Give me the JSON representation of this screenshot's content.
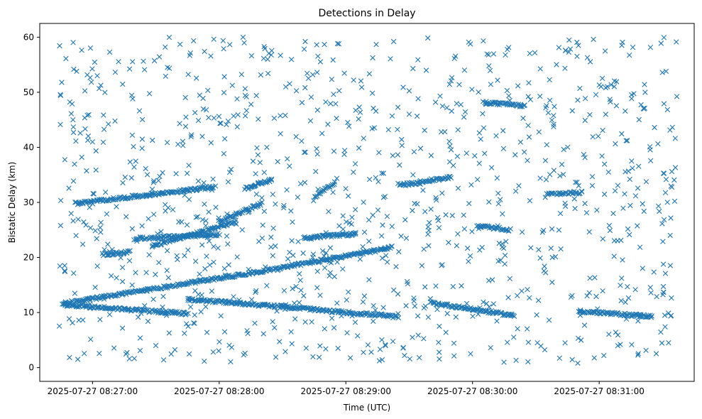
{
  "chart_data": {
    "type": "scatter",
    "title": "Detections in Delay",
    "xlabel": "Time (UTC)",
    "ylabel": "Bistatic Delay (km)",
    "marker": "x",
    "color": "#1f77b4",
    "xlim": [
      "2025-07-27 08:26:35",
      "2025-07-27 08:31:45"
    ],
    "ylim": [
      -2.5,
      62.5
    ],
    "xticks": [
      "2025-07-27 08:27:00",
      "2025-07-27 08:28:00",
      "2025-07-27 08:29:00",
      "2025-07-27 08:30:00",
      "2025-07-27 08:31:00"
    ],
    "yticks": [
      0,
      10,
      20,
      30,
      40,
      50,
      60
    ],
    "grid": false,
    "tracks": [
      {
        "x": [
          "2025-07-27 08:26:46",
          "2025-07-27 08:28:20"
        ],
        "y": [
          11.6,
          17.5
        ]
      },
      {
        "x": [
          "2025-07-27 08:28:20",
          "2025-07-27 08:29:22"
        ],
        "y": [
          17.5,
          21.8
        ]
      },
      {
        "x": [
          "2025-07-27 08:26:46",
          "2025-07-27 08:27:45"
        ],
        "y": [
          11.4,
          9.8
        ]
      },
      {
        "x": [
          "2025-07-27 08:27:45",
          "2025-07-27 08:28:45"
        ],
        "y": [
          12.4,
          10.6
        ]
      },
      {
        "x": [
          "2025-07-27 08:28:45",
          "2025-07-27 08:29:25"
        ],
        "y": [
          10.5,
          9.2
        ]
      },
      {
        "x": [
          "2025-07-27 08:29:40",
          "2025-07-27 08:30:20"
        ],
        "y": [
          11.8,
          9.4
        ]
      },
      {
        "x": [
          "2025-07-27 08:30:50",
          "2025-07-27 08:31:25"
        ],
        "y": [
          10.2,
          9.3
        ]
      },
      {
        "x": [
          "2025-07-27 08:26:52",
          "2025-07-27 08:27:58"
        ],
        "y": [
          29.8,
          32.8
        ]
      },
      {
        "x": [
          "2025-07-27 08:27:20",
          "2025-07-27 08:28:00"
        ],
        "y": [
          23.4,
          24.2
        ]
      },
      {
        "x": [
          "2025-07-27 08:27:28",
          "2025-07-27 08:28:08"
        ],
        "y": [
          22.0,
          26.5
        ]
      },
      {
        "x": [
          "2025-07-27 08:28:00",
          "2025-07-27 08:28:20"
        ],
        "y": [
          26.5,
          29.8
        ]
      },
      {
        "x": [
          "2025-07-27 08:27:05",
          "2025-07-27 08:27:18"
        ],
        "y": [
          20.5,
          21.0
        ]
      },
      {
        "x": [
          "2025-07-27 08:28:12",
          "2025-07-27 08:28:25"
        ],
        "y": [
          32.5,
          34.2
        ]
      },
      {
        "x": [
          "2025-07-27 08:28:40",
          "2025-07-27 08:29:05"
        ],
        "y": [
          23.5,
          24.3
        ]
      },
      {
        "x": [
          "2025-07-27 08:28:45",
          "2025-07-27 08:28:55"
        ],
        "y": [
          31.0,
          33.5
        ]
      },
      {
        "x": [
          "2025-07-27 08:29:25",
          "2025-07-27 08:29:35"
        ],
        "y": [
          33.2,
          33.5
        ]
      },
      {
        "x": [
          "2025-07-27 08:29:35",
          "2025-07-27 08:29:50"
        ],
        "y": [
          33.8,
          34.5
        ]
      },
      {
        "x": [
          "2025-07-27 08:30:05",
          "2025-07-27 08:30:25"
        ],
        "y": [
          48.2,
          47.5
        ]
      },
      {
        "x": [
          "2025-07-27 08:30:35",
          "2025-07-27 08:30:52"
        ],
        "y": [
          31.5,
          31.8
        ]
      },
      {
        "x": [
          "2025-07-27 08:30:02",
          "2025-07-27 08:30:18"
        ],
        "y": [
          25.8,
          25.0
        ]
      }
    ]
  }
}
